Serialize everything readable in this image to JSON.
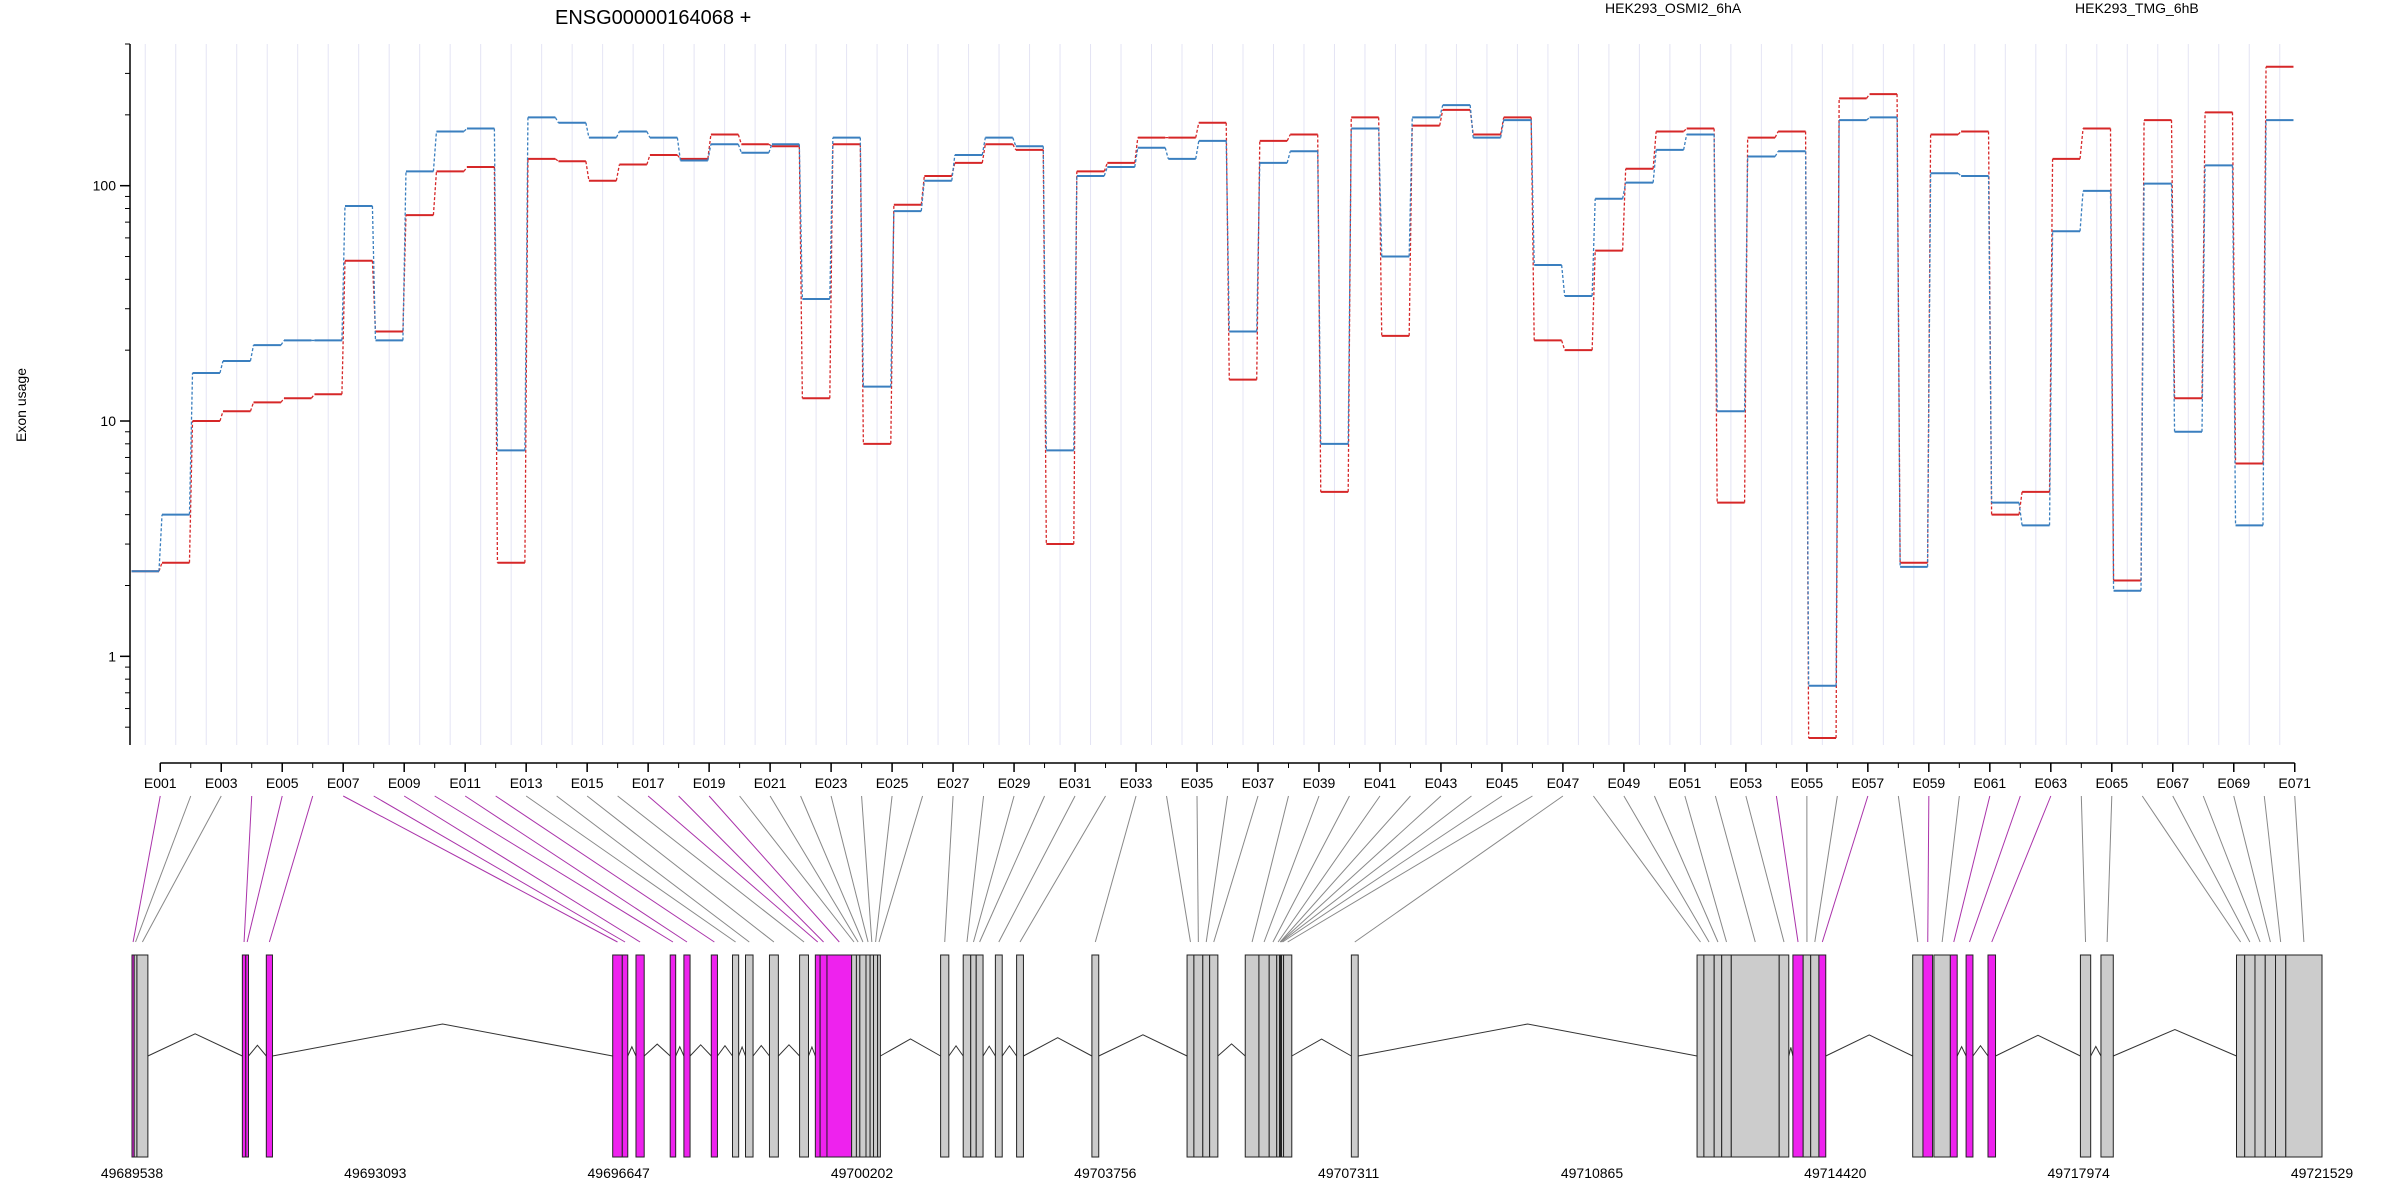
{
  "chart_data": {
    "type": "line",
    "title": "ENSG00000164068 +",
    "ylabel": "Exon usage",
    "yscale": "log",
    "ylim": [
      0.42,
      400
    ],
    "yticks": [
      1,
      10,
      100
    ],
    "ytick_labels": [
      "1",
      "10",
      "100"
    ],
    "x_ticks_shown": [
      "E001",
      "E003",
      "E005",
      "E007",
      "E009",
      "E011",
      "E013",
      "E015",
      "E017",
      "E019",
      "E021",
      "E023",
      "E025",
      "E027",
      "E029",
      "E031",
      "E033",
      "E035",
      "E037",
      "E039",
      "E041",
      "E043",
      "E045",
      "E047",
      "E049",
      "E051",
      "E053",
      "E055",
      "E057",
      "E059",
      "E061",
      "E063",
      "E065",
      "E067",
      "E069",
      "E071"
    ],
    "legend_position": "top",
    "series": [
      {
        "name": "HEK293_OSMI2_6hA",
        "color": "#d62728",
        "values": [
          2.3,
          2.5,
          10,
          11,
          12,
          12.5,
          13,
          48,
          24,
          75,
          115,
          120,
          2.5,
          130,
          127,
          105,
          123,
          135,
          130,
          165,
          150,
          147,
          12.5,
          150,
          8,
          83,
          110,
          125,
          150,
          142,
          3,
          115,
          125,
          160,
          160,
          185,
          15,
          155,
          165,
          5,
          195,
          23,
          180,
          210,
          165,
          195,
          22,
          20,
          53,
          118,
          170,
          175,
          4.5,
          160,
          170,
          0.45,
          235,
          245,
          2.5,
          165,
          170,
          4,
          5,
          130,
          175,
          2.1,
          190,
          12.5,
          205,
          6.6,
          320
        ]
      },
      {
        "name": "HEK293_TMG_6hB",
        "color": "#3a7fbf",
        "values": [
          2.3,
          4,
          16,
          18,
          21,
          22,
          22,
          82,
          22,
          115,
          170,
          175,
          7.5,
          195,
          185,
          160,
          170,
          160,
          128,
          150,
          138,
          150,
          33,
          160,
          14,
          78,
          105,
          135,
          160,
          147,
          7.5,
          110,
          120,
          145,
          130,
          155,
          24,
          125,
          140,
          8,
          175,
          50,
          195,
          220,
          160,
          190,
          46,
          34,
          88,
          103,
          142,
          165,
          11,
          133,
          140,
          0.75,
          190,
          195,
          2.4,
          113,
          110,
          4.5,
          3.6,
          64,
          95,
          1.9,
          102,
          9,
          122,
          3.6,
          190
        ]
      }
    ],
    "genomic_axis_labels": [
      "49689538",
      "49693093",
      "49696647",
      "49700202",
      "49703756",
      "49707311",
      "49710865",
      "49714420",
      "49717974",
      "49721529"
    ],
    "exon_model": [
      {
        "id": "E001",
        "start": 49689538,
        "end": 49689570,
        "highlight": true
      },
      {
        "id": "E002",
        "start": 49689570,
        "end": 49689610,
        "highlight": false
      },
      {
        "id": "E003",
        "start": 49689610,
        "end": 49689770,
        "highlight": false
      },
      {
        "id": "E004",
        "start": 49691150,
        "end": 49691200,
        "highlight": true
      },
      {
        "id": "E005",
        "start": 49691200,
        "end": 49691240,
        "highlight": true
      },
      {
        "id": "E006",
        "start": 49691500,
        "end": 49691590,
        "highlight": true
      },
      {
        "id": "E007",
        "start": 49696560,
        "end": 49696700,
        "highlight": true
      },
      {
        "id": "E008",
        "start": 49696700,
        "end": 49696780,
        "highlight": true
      },
      {
        "id": "E009",
        "start": 49696900,
        "end": 49697020,
        "highlight": true
      },
      {
        "id": "E010",
        "start": 49697400,
        "end": 49697480,
        "highlight": true
      },
      {
        "id": "E011",
        "start": 49697600,
        "end": 49697690,
        "highlight": true
      },
      {
        "id": "E012",
        "start": 49698000,
        "end": 49698090,
        "highlight": true
      },
      {
        "id": "E013",
        "start": 49698310,
        "end": 49698400,
        "highlight": false
      },
      {
        "id": "E014",
        "start": 49698500,
        "end": 49698610,
        "highlight": false
      },
      {
        "id": "E015",
        "start": 49698850,
        "end": 49698980,
        "highlight": false
      },
      {
        "id": "E016",
        "start": 49699290,
        "end": 49699420,
        "highlight": false
      },
      {
        "id": "E017",
        "start": 49699520,
        "end": 49699590,
        "highlight": true
      },
      {
        "id": "E018",
        "start": 49699590,
        "end": 49699690,
        "highlight": true
      },
      {
        "id": "E019",
        "start": 49699690,
        "end": 49700050,
        "highlight": true
      },
      {
        "id": "E020",
        "start": 49700050,
        "end": 49700120,
        "highlight": false
      },
      {
        "id": "E021",
        "start": 49700120,
        "end": 49700170,
        "highlight": false
      },
      {
        "id": "E022",
        "start": 49700170,
        "end": 49700260,
        "highlight": false
      },
      {
        "id": "E023",
        "start": 49700260,
        "end": 49700320,
        "highlight": false
      },
      {
        "id": "E024",
        "start": 49700320,
        "end": 49700370,
        "highlight": false
      },
      {
        "id": "E025",
        "start": 49700370,
        "end": 49700430,
        "highlight": false
      },
      {
        "id": "E026",
        "start": 49700430,
        "end": 49700470,
        "highlight": false
      },
      {
        "id": "E027",
        "start": 49701350,
        "end": 49701470,
        "highlight": false
      },
      {
        "id": "E028",
        "start": 49701680,
        "end": 49701790,
        "highlight": false
      },
      {
        "id": "E029",
        "start": 49701790,
        "end": 49701870,
        "highlight": false
      },
      {
        "id": "E030",
        "start": 49701870,
        "end": 49701970,
        "highlight": false
      },
      {
        "id": "E031",
        "start": 49702150,
        "end": 49702250,
        "highlight": false
      },
      {
        "id": "E032",
        "start": 49702460,
        "end": 49702560,
        "highlight": false
      },
      {
        "id": "E033",
        "start": 49703560,
        "end": 49703660,
        "highlight": false
      },
      {
        "id": "E034",
        "start": 49704950,
        "end": 49705050,
        "highlight": false
      },
      {
        "id": "E035",
        "start": 49705050,
        "end": 49705180,
        "highlight": false
      },
      {
        "id": "E036",
        "start": 49705180,
        "end": 49705280,
        "highlight": false
      },
      {
        "id": "E037",
        "start": 49705280,
        "end": 49705400,
        "highlight": false
      },
      {
        "id": "E038",
        "start": 49705800,
        "end": 49706000,
        "highlight": false
      },
      {
        "id": "E039",
        "start": 49706000,
        "end": 49706150,
        "highlight": false
      },
      {
        "id": "E040",
        "start": 49706150,
        "end": 49706260,
        "highlight": false
      },
      {
        "id": "E041",
        "start": 49706260,
        "end": 49706300,
        "highlight": false
      },
      {
        "id": "E042",
        "start": 49706300,
        "end": 49706320,
        "highlight": false
      },
      {
        "id": "E043",
        "start": 49706320,
        "end": 49706310,
        "highlight": false
      },
      {
        "id": "E044",
        "start": 49706320,
        "end": 49706330,
        "highlight": false
      },
      {
        "id": "E045",
        "start": 49706330,
        "end": 49706360,
        "highlight": false
      },
      {
        "id": "E046",
        "start": 49706360,
        "end": 49706480,
        "highlight": false
      },
      {
        "id": "E047",
        "start": 49707350,
        "end": 49707450,
        "highlight": false
      },
      {
        "id": "E048",
        "start": 49712400,
        "end": 49712500,
        "highlight": false
      },
      {
        "id": "E049",
        "start": 49712500,
        "end": 49712650,
        "highlight": false
      },
      {
        "id": "E050",
        "start": 49712650,
        "end": 49712760,
        "highlight": false
      },
      {
        "id": "E051",
        "start": 49712760,
        "end": 49712900,
        "highlight": false
      },
      {
        "id": "E052",
        "start": 49712900,
        "end": 49713600,
        "highlight": false
      },
      {
        "id": "E053",
        "start": 49713600,
        "end": 49713740,
        "highlight": false
      },
      {
        "id": "E054",
        "start": 49713800,
        "end": 49713950,
        "highlight": true
      },
      {
        "id": "E055",
        "start": 49713950,
        "end": 49714060,
        "highlight": false
      },
      {
        "id": "E056",
        "start": 49714060,
        "end": 49714180,
        "highlight": false
      },
      {
        "id": "E057",
        "start": 49714180,
        "end": 49714280,
        "highlight": true
      },
      {
        "id": "E058",
        "start": 49715550,
        "end": 49715700,
        "highlight": false
      },
      {
        "id": "E059",
        "start": 49715700,
        "end": 49715840,
        "highlight": true
      },
      {
        "id": "E060",
        "start": 49715860,
        "end": 49716100,
        "highlight": false
      },
      {
        "id": "E061",
        "start": 49716100,
        "end": 49716200,
        "highlight": true
      },
      {
        "id": "E062",
        "start": 49716330,
        "end": 49716430,
        "highlight": true
      },
      {
        "id": "E063",
        "start": 49716650,
        "end": 49716760,
        "highlight": true
      },
      {
        "id": "E064",
        "start": 49718000,
        "end": 49718150,
        "highlight": false
      },
      {
        "id": "E065",
        "start": 49718300,
        "end": 49718480,
        "highlight": false
      },
      {
        "id": "E066",
        "start": 49720280,
        "end": 49720400,
        "highlight": false
      },
      {
        "id": "E067",
        "start": 49720400,
        "end": 49720550,
        "highlight": false
      },
      {
        "id": "E068",
        "start": 49720550,
        "end": 49720700,
        "highlight": false
      },
      {
        "id": "E069",
        "start": 49720700,
        "end": 49720850,
        "highlight": false
      },
      {
        "id": "E070",
        "start": 49720850,
        "end": 49721000,
        "highlight": false
      },
      {
        "id": "E071",
        "start": 49721000,
        "end": 49721529,
        "highlight": false
      }
    ]
  }
}
